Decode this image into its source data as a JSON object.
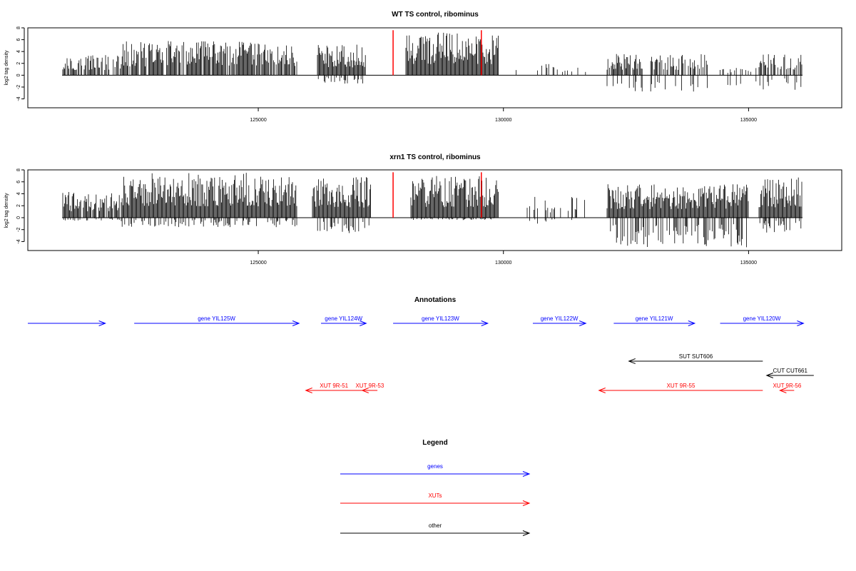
{
  "chart_data": [
    {
      "type": "bar",
      "title": "WT TS control, ribominus",
      "xlabel": "",
      "ylabel": "log2 tag density",
      "xlim": [
        120300,
        136900
      ],
      "ylim": [
        -5.5,
        8
      ],
      "x_ticks": [
        125000,
        130000,
        135000
      ],
      "y_ticks": [
        -4,
        -2,
        0,
        2,
        4,
        6,
        8
      ],
      "signal_range": [
        121000,
        136100
      ],
      "highlight_lines": [
        127750,
        129550
      ],
      "highlight_color": "#ff0000",
      "bar_color": "#000000",
      "segments": [
        {
          "from": 121000,
          "to": 122200,
          "density": 0.7,
          "max_up": 3.5,
          "max_down": 0
        },
        {
          "from": 122200,
          "to": 125800,
          "density": 0.9,
          "max_up": 5.8,
          "max_down": 0
        },
        {
          "from": 126200,
          "to": 127200,
          "density": 1.0,
          "max_up": 5.2,
          "max_down": 1.5
        },
        {
          "from": 128000,
          "to": 129900,
          "density": 1.0,
          "max_up": 7.2,
          "max_down": 0
        },
        {
          "from": 130200,
          "to": 131700,
          "density": 0.2,
          "max_up": 2.0,
          "max_down": 0
        },
        {
          "from": 132100,
          "to": 134200,
          "density": 0.6,
          "max_up": 3.6,
          "max_down": 2.8
        },
        {
          "from": 134200,
          "to": 135200,
          "density": 0.3,
          "max_up": 1.5,
          "max_down": 2.2
        },
        {
          "from": 135200,
          "to": 136100,
          "density": 0.6,
          "max_up": 3.6,
          "max_down": 2.6
        }
      ]
    },
    {
      "type": "bar",
      "title": "xrn1 TS control, ribominus",
      "xlabel": "",
      "ylabel": "log2 tag density",
      "xlim": [
        120300,
        136900
      ],
      "ylim": [
        -5.5,
        8
      ],
      "x_ticks": [
        125000,
        130000,
        135000
      ],
      "y_ticks": [
        -4,
        -2,
        0,
        2,
        4,
        6,
        8
      ],
      "signal_range": [
        121000,
        136100
      ],
      "highlight_lines": [
        127750,
        129550
      ],
      "highlight_color": "#ff0000",
      "bar_color": "#000000",
      "segments": [
        {
          "from": 121000,
          "to": 122200,
          "density": 0.8,
          "max_up": 4.3,
          "max_down": 0.5
        },
        {
          "from": 122200,
          "to": 125800,
          "density": 1.0,
          "max_up": 7.6,
          "max_down": 1.6
        },
        {
          "from": 126100,
          "to": 127300,
          "density": 1.0,
          "max_up": 6.8,
          "max_down": 2.6
        },
        {
          "from": 128100,
          "to": 129900,
          "density": 1.0,
          "max_up": 7.0,
          "max_down": 0.4
        },
        {
          "from": 130300,
          "to": 131800,
          "density": 0.2,
          "max_up": 3.5,
          "max_down": 1.0
        },
        {
          "from": 132100,
          "to": 135000,
          "density": 1.0,
          "max_up": 5.7,
          "max_down": 5.0
        },
        {
          "from": 135200,
          "to": 136100,
          "density": 1.0,
          "max_up": 6.8,
          "max_down": 2.5
        }
      ]
    }
  ],
  "annotations": {
    "title": "Annotations",
    "features": [
      {
        "label": "",
        "start": 120300,
        "end": 121880,
        "strand": "+",
        "kind": "gene",
        "row": 0
      },
      {
        "label": "gene YIL125W",
        "start": 122470,
        "end": 125830,
        "strand": "+",
        "kind": "gene",
        "row": 0
      },
      {
        "label": "gene YIL124W",
        "start": 126280,
        "end": 127200,
        "strand": "+",
        "kind": "gene",
        "row": 0
      },
      {
        "label": "gene YIL123W",
        "start": 127750,
        "end": 129680,
        "strand": "+",
        "kind": "gene",
        "row": 0
      },
      {
        "label": "gene YIL122W",
        "start": 130600,
        "end": 131680,
        "strand": "+",
        "kind": "gene",
        "row": 0
      },
      {
        "label": "gene YIL121W",
        "start": 132250,
        "end": 133900,
        "strand": "+",
        "kind": "gene",
        "row": 0
      },
      {
        "label": "gene YIL120W",
        "start": 134420,
        "end": 136120,
        "strand": "+",
        "kind": "gene",
        "row": 0
      },
      {
        "label": "SUT SUT606",
        "start": 132560,
        "end": 135290,
        "strand": "-",
        "kind": "other",
        "row": 1
      },
      {
        "label": "CUT CUT661",
        "start": 135370,
        "end": 136330,
        "strand": "-",
        "kind": "other",
        "row": 2
      },
      {
        "label": "XUT 9R-51",
        "start": 125970,
        "end": 127120,
        "strand": "-",
        "kind": "XUT",
        "row": 3
      },
      {
        "label": "XUT 9R-53",
        "start": 127120,
        "end": 127430,
        "strand": "-",
        "kind": "XUT",
        "row": 3
      },
      {
        "label": "XUT 9R-55",
        "start": 131950,
        "end": 135290,
        "strand": "-",
        "kind": "XUT",
        "row": 3
      },
      {
        "label": "XUT 9R-56",
        "start": 135640,
        "end": 135930,
        "strand": "-",
        "kind": "XUT",
        "row": 3
      }
    ]
  },
  "legend": {
    "title": "Legend",
    "items": [
      {
        "label": "genes",
        "color": "#0000ff"
      },
      {
        "label": "XUTs",
        "color": "#ff0000"
      },
      {
        "label": "other",
        "color": "#000000"
      }
    ]
  },
  "colors": {
    "gene": "#0000ff",
    "XUT": "#ff0000",
    "other": "#000000"
  }
}
